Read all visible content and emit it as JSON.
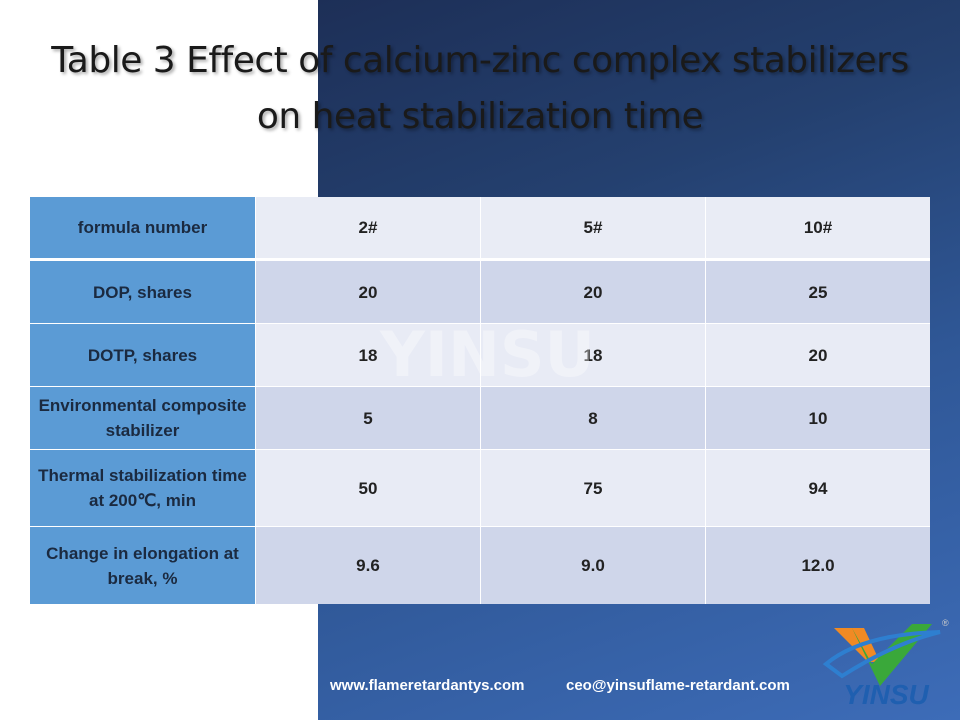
{
  "title": {
    "line1": "Table 3 Effect of calcium-zinc complex stabilizers",
    "line2": "on heat stabilization time"
  },
  "table": {
    "header": [
      "formula number",
      "2#",
      "5#",
      "10#"
    ],
    "rows": [
      [
        "DOP, shares",
        "20",
        "20",
        "25"
      ],
      [
        "DOTP, shares",
        "18",
        "18",
        "20"
      ],
      [
        "Environmental composite stabilizer",
        "5",
        "8",
        "10"
      ],
      [
        "Thermal stabilization time at 200℃, min",
        "50",
        "75",
        "94"
      ],
      [
        "Change in elongation at break, %",
        "9.6",
        "9.0",
        "12.0"
      ]
    ]
  },
  "watermark": "YINSU",
  "footer": {
    "website": "www.flameretardantys.com",
    "email": "ceo@yinsuflame-retardant.com"
  },
  "logo": {
    "text": "YINSU",
    "mark": "®"
  }
}
